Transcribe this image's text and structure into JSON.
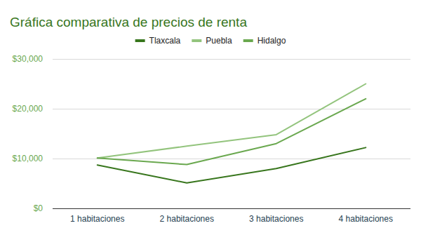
{
  "chart_data": {
    "type": "line",
    "title": "Gráfica comparativa de precios de renta",
    "categories": [
      "1 habitaciones",
      "2 habitaciones",
      "3 habitaciones",
      "4 habitaciones"
    ],
    "series": [
      {
        "name": "Tlaxcala",
        "color": "#38761d",
        "values": [
          8700,
          5100,
          8000,
          12200
        ]
      },
      {
        "name": "Puebla",
        "color": "#93c47d",
        "values": [
          10100,
          12500,
          14800,
          25000
        ]
      },
      {
        "name": "Hidalgo",
        "color": "#6aa84f",
        "values": [
          10100,
          8800,
          13000,
          22000
        ]
      }
    ],
    "ylim": [
      0,
      30000
    ],
    "yticks": [
      {
        "value": 0,
        "label": "$0"
      },
      {
        "value": 10000,
        "label": "$10,000"
      },
      {
        "value": 20000,
        "label": "$20,000"
      },
      {
        "value": 30000,
        "label": "$30,000"
      }
    ],
    "grid": true,
    "legend": "top"
  }
}
